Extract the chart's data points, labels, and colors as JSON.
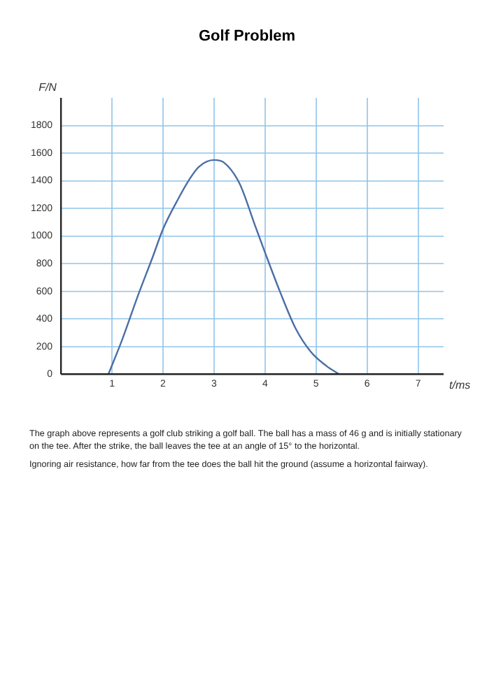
{
  "chart_data": {
    "type": "line",
    "title": "Golf Problem",
    "xlabel": "t/ms",
    "ylabel": "F/N",
    "x": [
      0.93,
      1.2,
      1.5,
      1.8,
      2.0,
      2.3,
      2.5,
      2.7,
      3.0,
      3.2,
      3.5,
      3.8,
      4.0,
      4.3,
      4.6,
      4.9,
      5.2,
      5.45
    ],
    "series": [
      {
        "color": "#4a6fa5",
        "values": [
          0,
          250,
          560,
          850,
          1050,
          1270,
          1400,
          1500,
          1550,
          1530,
          1380,
          1080,
          880,
          590,
          330,
          160,
          60,
          0
        ]
      }
    ],
    "xlim": [
      0,
      7.5
    ],
    "ylim": [
      0,
      2000
    ],
    "xticks": [
      {
        "value": 0,
        "label": null
      },
      1,
      2,
      3,
      4,
      5,
      6,
      7
    ],
    "yticks": [
      0,
      200,
      400,
      600,
      800,
      1000,
      1200,
      1400,
      1600,
      1800
    ],
    "grid": true,
    "legend": false,
    "marker": "none",
    "line_style": "solid",
    "annotations": [
      "The graph above represents a golf club striking a golf ball.  The ball has a mass of 46 g and is initially stationary on the tee.  After the strike, the ball leaves the tee at an angle of 15° to the horizontal.",
      "Ignoring air resistance, how far from the tee does the ball hit the ground (assume a horizontal fairway)."
    ]
  }
}
